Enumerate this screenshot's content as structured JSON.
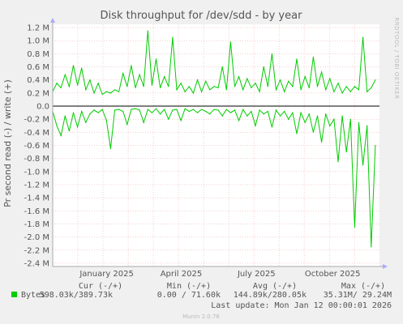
{
  "colors": {
    "background": "#f0f0f0",
    "plot_background": "#ffffff",
    "grid": "#e8a0a0",
    "series": "#00cc00",
    "axis": "#000000",
    "text": "#555555"
  },
  "chart_data": {
    "type": "line",
    "title": "Disk throughput for /dev/sdd - by year",
    "ylabel": "Pr second read (-) / write (+)",
    "side_label": "RRDTOOL / TOBI OETIKER",
    "footer": "Munin 2.0.76",
    "ylim": [
      -2.45,
      1.25
    ],
    "yticks": [
      "1.2 M",
      "1.0 M",
      "0.8 M",
      "0.6 M",
      "0.4 M",
      "0.2 M",
      "0.0",
      "-0.2 M",
      "-0.4 M",
      "-0.6 M",
      "-0.8 M",
      "-1.0 M",
      "-1.2 M",
      "-1.4 M",
      "-1.6 M",
      "-1.8 M",
      "-2.0 M",
      "-2.2 M",
      "-2.4 M"
    ],
    "ytick_values": [
      1.2,
      1.0,
      0.8,
      0.6,
      0.4,
      0.2,
      0.0,
      -0.2,
      -0.4,
      -0.6,
      -0.8,
      -1.0,
      -1.2,
      -1.4,
      -1.6,
      -1.8,
      -2.0,
      -2.2,
      -2.4
    ],
    "xlim": [
      0,
      395
    ],
    "xticks": [
      {
        "label": "January 2025",
        "day": 31
      },
      {
        "label": "April 2025",
        "day": 121
      },
      {
        "label": "July 2025",
        "day": 212
      },
      {
        "label": "October 2025",
        "day": 304
      }
    ],
    "series": [
      {
        "name": "write",
        "x": [
          0,
          5,
          10,
          15,
          20,
          25,
          30,
          35,
          40,
          45,
          50,
          55,
          60,
          65,
          70,
          75,
          80,
          85,
          90,
          95,
          100,
          105,
          110,
          115,
          120,
          125,
          130,
          135,
          140,
          145,
          150,
          155,
          160,
          165,
          170,
          175,
          180,
          185,
          190,
          195,
          200,
          205,
          210,
          215,
          220,
          225,
          230,
          235,
          240,
          245,
          250,
          255,
          260,
          265,
          270,
          275,
          280,
          285,
          290,
          295,
          300,
          305,
          310,
          315,
          320,
          325,
          330,
          335,
          340,
          345,
          350,
          355,
          360,
          365,
          370,
          375,
          380,
          385,
          390
        ],
        "y": [
          0.22,
          0.35,
          0.28,
          0.48,
          0.3,
          0.62,
          0.32,
          0.58,
          0.25,
          0.4,
          0.2,
          0.35,
          0.18,
          0.22,
          0.2,
          0.25,
          0.22,
          0.5,
          0.3,
          0.62,
          0.28,
          0.48,
          0.3,
          1.15,
          0.32,
          0.72,
          0.28,
          0.45,
          0.3,
          1.05,
          0.25,
          0.35,
          0.22,
          0.3,
          0.2,
          0.4,
          0.22,
          0.38,
          0.25,
          0.3,
          0.28,
          0.6,
          0.25,
          0.98,
          0.3,
          0.45,
          0.25,
          0.42,
          0.28,
          0.35,
          0.22,
          0.6,
          0.3,
          0.8,
          0.25,
          0.4,
          0.22,
          0.38,
          0.3,
          0.72,
          0.25,
          0.45,
          0.28,
          0.75,
          0.3,
          0.52,
          0.25,
          0.42,
          0.22,
          0.35,
          0.2,
          0.3,
          0.22,
          0.3,
          0.25,
          1.05,
          0.22,
          0.28,
          0.4
        ]
      },
      {
        "name": "read",
        "x": [
          0,
          5,
          10,
          15,
          20,
          25,
          30,
          35,
          40,
          45,
          50,
          55,
          60,
          65,
          70,
          75,
          80,
          85,
          90,
          95,
          100,
          105,
          110,
          115,
          120,
          125,
          130,
          135,
          140,
          145,
          150,
          155,
          160,
          165,
          170,
          175,
          180,
          185,
          190,
          195,
          200,
          205,
          210,
          215,
          220,
          225,
          230,
          235,
          240,
          245,
          250,
          255,
          260,
          265,
          270,
          275,
          280,
          285,
          290,
          295,
          300,
          305,
          310,
          315,
          320,
          325,
          330,
          335,
          340,
          345,
          350,
          355,
          360,
          365,
          370,
          375,
          380,
          385,
          390
        ],
        "y": [
          -0.08,
          -0.3,
          -0.45,
          -0.15,
          -0.38,
          -0.1,
          -0.32,
          -0.08,
          -0.25,
          -0.12,
          -0.06,
          -0.1,
          -0.05,
          -0.22,
          -0.65,
          -0.06,
          -0.05,
          -0.08,
          -0.28,
          -0.05,
          -0.04,
          -0.06,
          -0.25,
          -0.05,
          -0.1,
          -0.04,
          -0.12,
          -0.05,
          -0.2,
          -0.06,
          -0.05,
          -0.22,
          -0.04,
          -0.08,
          -0.05,
          -0.1,
          -0.05,
          -0.08,
          -0.12,
          -0.05,
          -0.06,
          -0.15,
          -0.05,
          -0.1,
          -0.06,
          -0.22,
          -0.05,
          -0.15,
          -0.08,
          -0.3,
          -0.06,
          -0.12,
          -0.08,
          -0.32,
          -0.06,
          -0.15,
          -0.08,
          -0.2,
          -0.1,
          -0.42,
          -0.1,
          -0.25,
          -0.12,
          -0.4,
          -0.15,
          -0.55,
          -0.12,
          -0.3,
          -0.2,
          -0.85,
          -0.15,
          -0.7,
          -0.2,
          -1.85,
          -0.25,
          -0.9,
          -0.3,
          -2.15,
          -0.6
        ]
      }
    ],
    "legend": {
      "swatch_label": "Bytes",
      "headers": [
        "Cur (-/+)",
        "Min (-/+)",
        "Avg (-/+)",
        "Max (-/+)"
      ],
      "values": [
        "598.03k/389.73k",
        "0.00 / 71.60k",
        "144.89k/280.05k",
        "35.31M/ 29.24M"
      ],
      "last_update": "Last update: Mon Jan 12 00:00:01 2026"
    }
  }
}
